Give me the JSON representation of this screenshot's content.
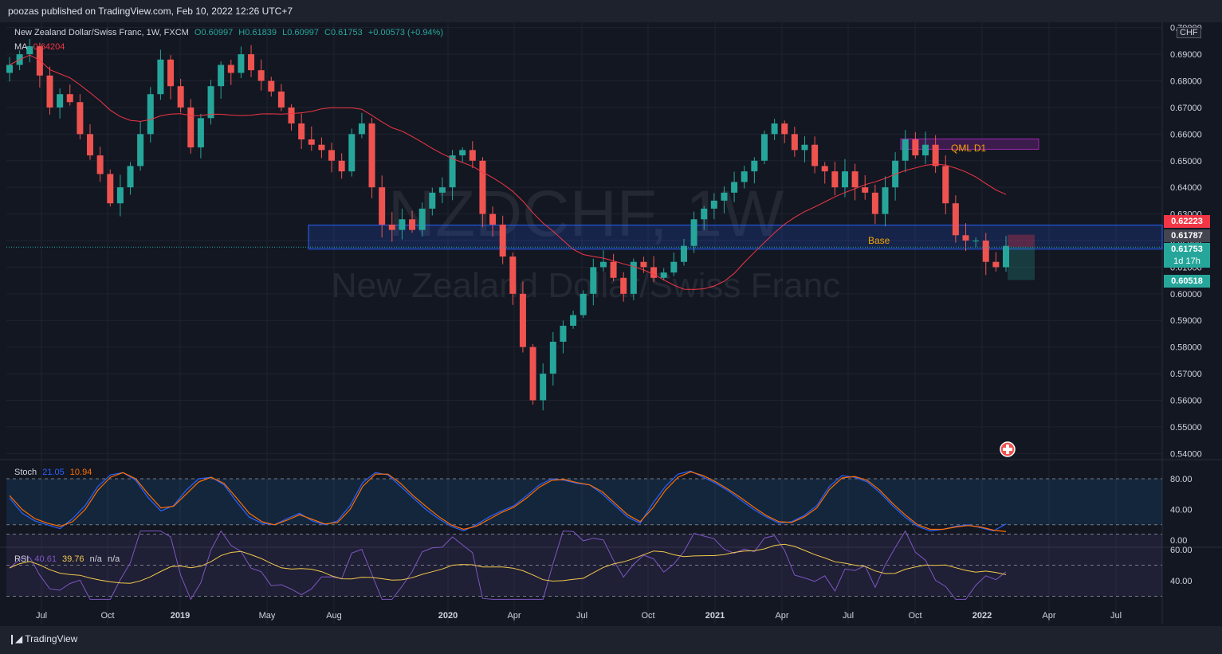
{
  "header": {
    "published": "poozas published on TradingView.com, Feb 10, 2022 12:26 UTC+7"
  },
  "legend": {
    "symbol": "New Zealand Dollar/Swiss Franc, 1W, FXCM",
    "open": "O0.60997",
    "high": "H0.61839",
    "low": "L0.60997",
    "close": "C0.61753",
    "change": "+0.00573 (+0.94%)",
    "ma_label": "MA",
    "ma_value": "0.64204",
    "stoch_label": "Stoch",
    "stoch_k": "21.05",
    "stoch_d": "10.94",
    "rsi_label": "RSI",
    "rsi_value": "40.61",
    "rsi_ma": "39.76",
    "rsi_na1": "n/a",
    "rsi_na2": "n/a"
  },
  "currency_button": "CHF",
  "watermark": {
    "ticker": "NZDCHF, 1W",
    "name": "New Zealand Dollar/Swiss Franc"
  },
  "annotations": {
    "base": "Base",
    "qml": "QML D1"
  },
  "price_tags": {
    "red": "0.62223",
    "gray": "0.61787",
    "current": "0.61753",
    "countdown": "1d 17h",
    "target": "0.60518"
  },
  "footer": {
    "brand": "TradingView"
  },
  "colors": {
    "background": "#131722",
    "bull": "#26a69a",
    "bear": "#ef5350",
    "ma": "#f23645",
    "stoch_k": "#2962ff",
    "stoch_d": "#ff6d00",
    "rsi": "#7e57c2",
    "rsi_ma": "#f2c94c"
  },
  "chart_data": [
    {
      "type": "candlestick",
      "title": "New Zealand Dollar/Swiss Franc, 1W, FXCM",
      "timeframe": "1W",
      "x_tick_labels": [
        "Jul",
        "Oct",
        "2019",
        "May",
        "Aug",
        "2020",
        "Apr",
        "Jul",
        "Oct",
        "2021",
        "Apr",
        "Jul",
        "Oct",
        "2022",
        "Apr",
        "Jul"
      ],
      "y_tick_labels": [
        "0.54000",
        "0.55000",
        "0.56000",
        "0.57000",
        "0.58000",
        "0.59000",
        "0.60000",
        "0.61000",
        "0.62000",
        "0.63000",
        "0.64000",
        "0.65000",
        "0.66000",
        "0.67000",
        "0.68000",
        "0.69000",
        "0.70000"
      ],
      "ylim": [
        0.538,
        0.702
      ],
      "close_path": [
        0.686,
        0.69,
        0.693,
        0.682,
        0.67,
        0.675,
        0.672,
        0.66,
        0.652,
        0.645,
        0.634,
        0.64,
        0.648,
        0.66,
        0.675,
        0.688,
        0.678,
        0.67,
        0.655,
        0.666,
        0.678,
        0.686,
        0.683,
        0.69,
        0.684,
        0.68,
        0.676,
        0.67,
        0.664,
        0.658,
        0.656,
        0.654,
        0.65,
        0.646,
        0.66,
        0.664,
        0.64,
        0.626,
        0.624,
        0.628,
        0.624,
        0.632,
        0.638,
        0.64,
        0.652,
        0.654,
        0.65,
        0.63,
        0.626,
        0.614,
        0.6,
        0.58,
        0.56,
        0.57,
        0.582,
        0.588,
        0.592,
        0.6,
        0.61,
        0.612,
        0.606,
        0.6,
        0.612,
        0.61,
        0.606,
        0.608,
        0.612,
        0.618,
        0.628,
        0.632,
        0.635,
        0.638,
        0.642,
        0.646,
        0.65,
        0.66,
        0.664,
        0.66,
        0.654,
        0.656,
        0.648,
        0.646,
        0.64,
        0.646,
        0.64,
        0.638,
        0.63,
        0.64,
        0.65,
        0.658,
        0.652,
        0.656,
        0.648,
        0.634,
        0.622,
        0.62,
        0.62,
        0.612,
        0.61,
        0.618
      ],
      "moving_average": {
        "name": "MA",
        "last": 0.64204
      },
      "last": {
        "open": 0.60997,
        "high": 0.61839,
        "low": 0.60997,
        "close": 0.61753
      },
      "zones": [
        {
          "label": "Base",
          "from": 0.6168,
          "to": 0.6258
        },
        {
          "label": "QML D1",
          "from": 0.6543,
          "to": 0.6582
        }
      ],
      "price_levels": [
        0.62223,
        0.61787,
        0.61753,
        0.60518
      ]
    },
    {
      "type": "line",
      "title": "Stoch",
      "ylim": [
        0,
        100
      ],
      "y_tick_labels": [
        "0.00",
        "40.00",
        "80.00"
      ],
      "series": [
        {
          "name": "%K",
          "last": 21.05,
          "values": [
            55,
            35,
            25,
            20,
            15,
            28,
            45,
            70,
            85,
            88,
            78,
            55,
            38,
            45,
            65,
            80,
            82,
            72,
            50,
            30,
            22,
            20,
            28,
            35,
            25,
            20,
            25,
            45,
            75,
            88,
            85,
            70,
            55,
            40,
            28,
            18,
            12,
            20,
            30,
            38,
            45,
            58,
            72,
            80,
            78,
            74,
            72,
            60,
            45,
            30,
            22,
            48,
            70,
            86,
            90,
            82,
            74,
            64,
            52,
            40,
            30,
            22,
            24,
            32,
            45,
            70,
            84,
            82,
            76,
            62,
            45,
            30,
            18,
            12,
            14,
            18,
            20,
            16,
            12,
            21
          ]
        },
        {
          "name": "%D",
          "last": 10.94,
          "values": [
            58,
            40,
            28,
            22,
            18,
            24,
            40,
            65,
            82,
            88,
            80,
            60,
            42,
            44,
            60,
            76,
            82,
            74,
            55,
            35,
            24,
            20,
            26,
            33,
            27,
            21,
            23,
            40,
            70,
            86,
            86,
            74,
            58,
            44,
            31,
            20,
            14,
            18,
            27,
            36,
            43,
            55,
            69,
            78,
            79,
            75,
            72,
            63,
            48,
            33,
            24,
            42,
            65,
            82,
            89,
            84,
            76,
            66,
            55,
            43,
            32,
            24,
            23,
            30,
            42,
            66,
            81,
            83,
            78,
            65,
            48,
            33,
            20,
            14,
            14,
            17,
            19,
            17,
            13,
            11
          ]
        }
      ]
    },
    {
      "type": "line",
      "title": "RSI",
      "y_tick_labels": [
        "40.00",
        "60.00"
      ],
      "series": [
        {
          "name": "RSI",
          "last": 40.61
        },
        {
          "name": "RSI MA",
          "last": 39.76
        }
      ]
    }
  ]
}
